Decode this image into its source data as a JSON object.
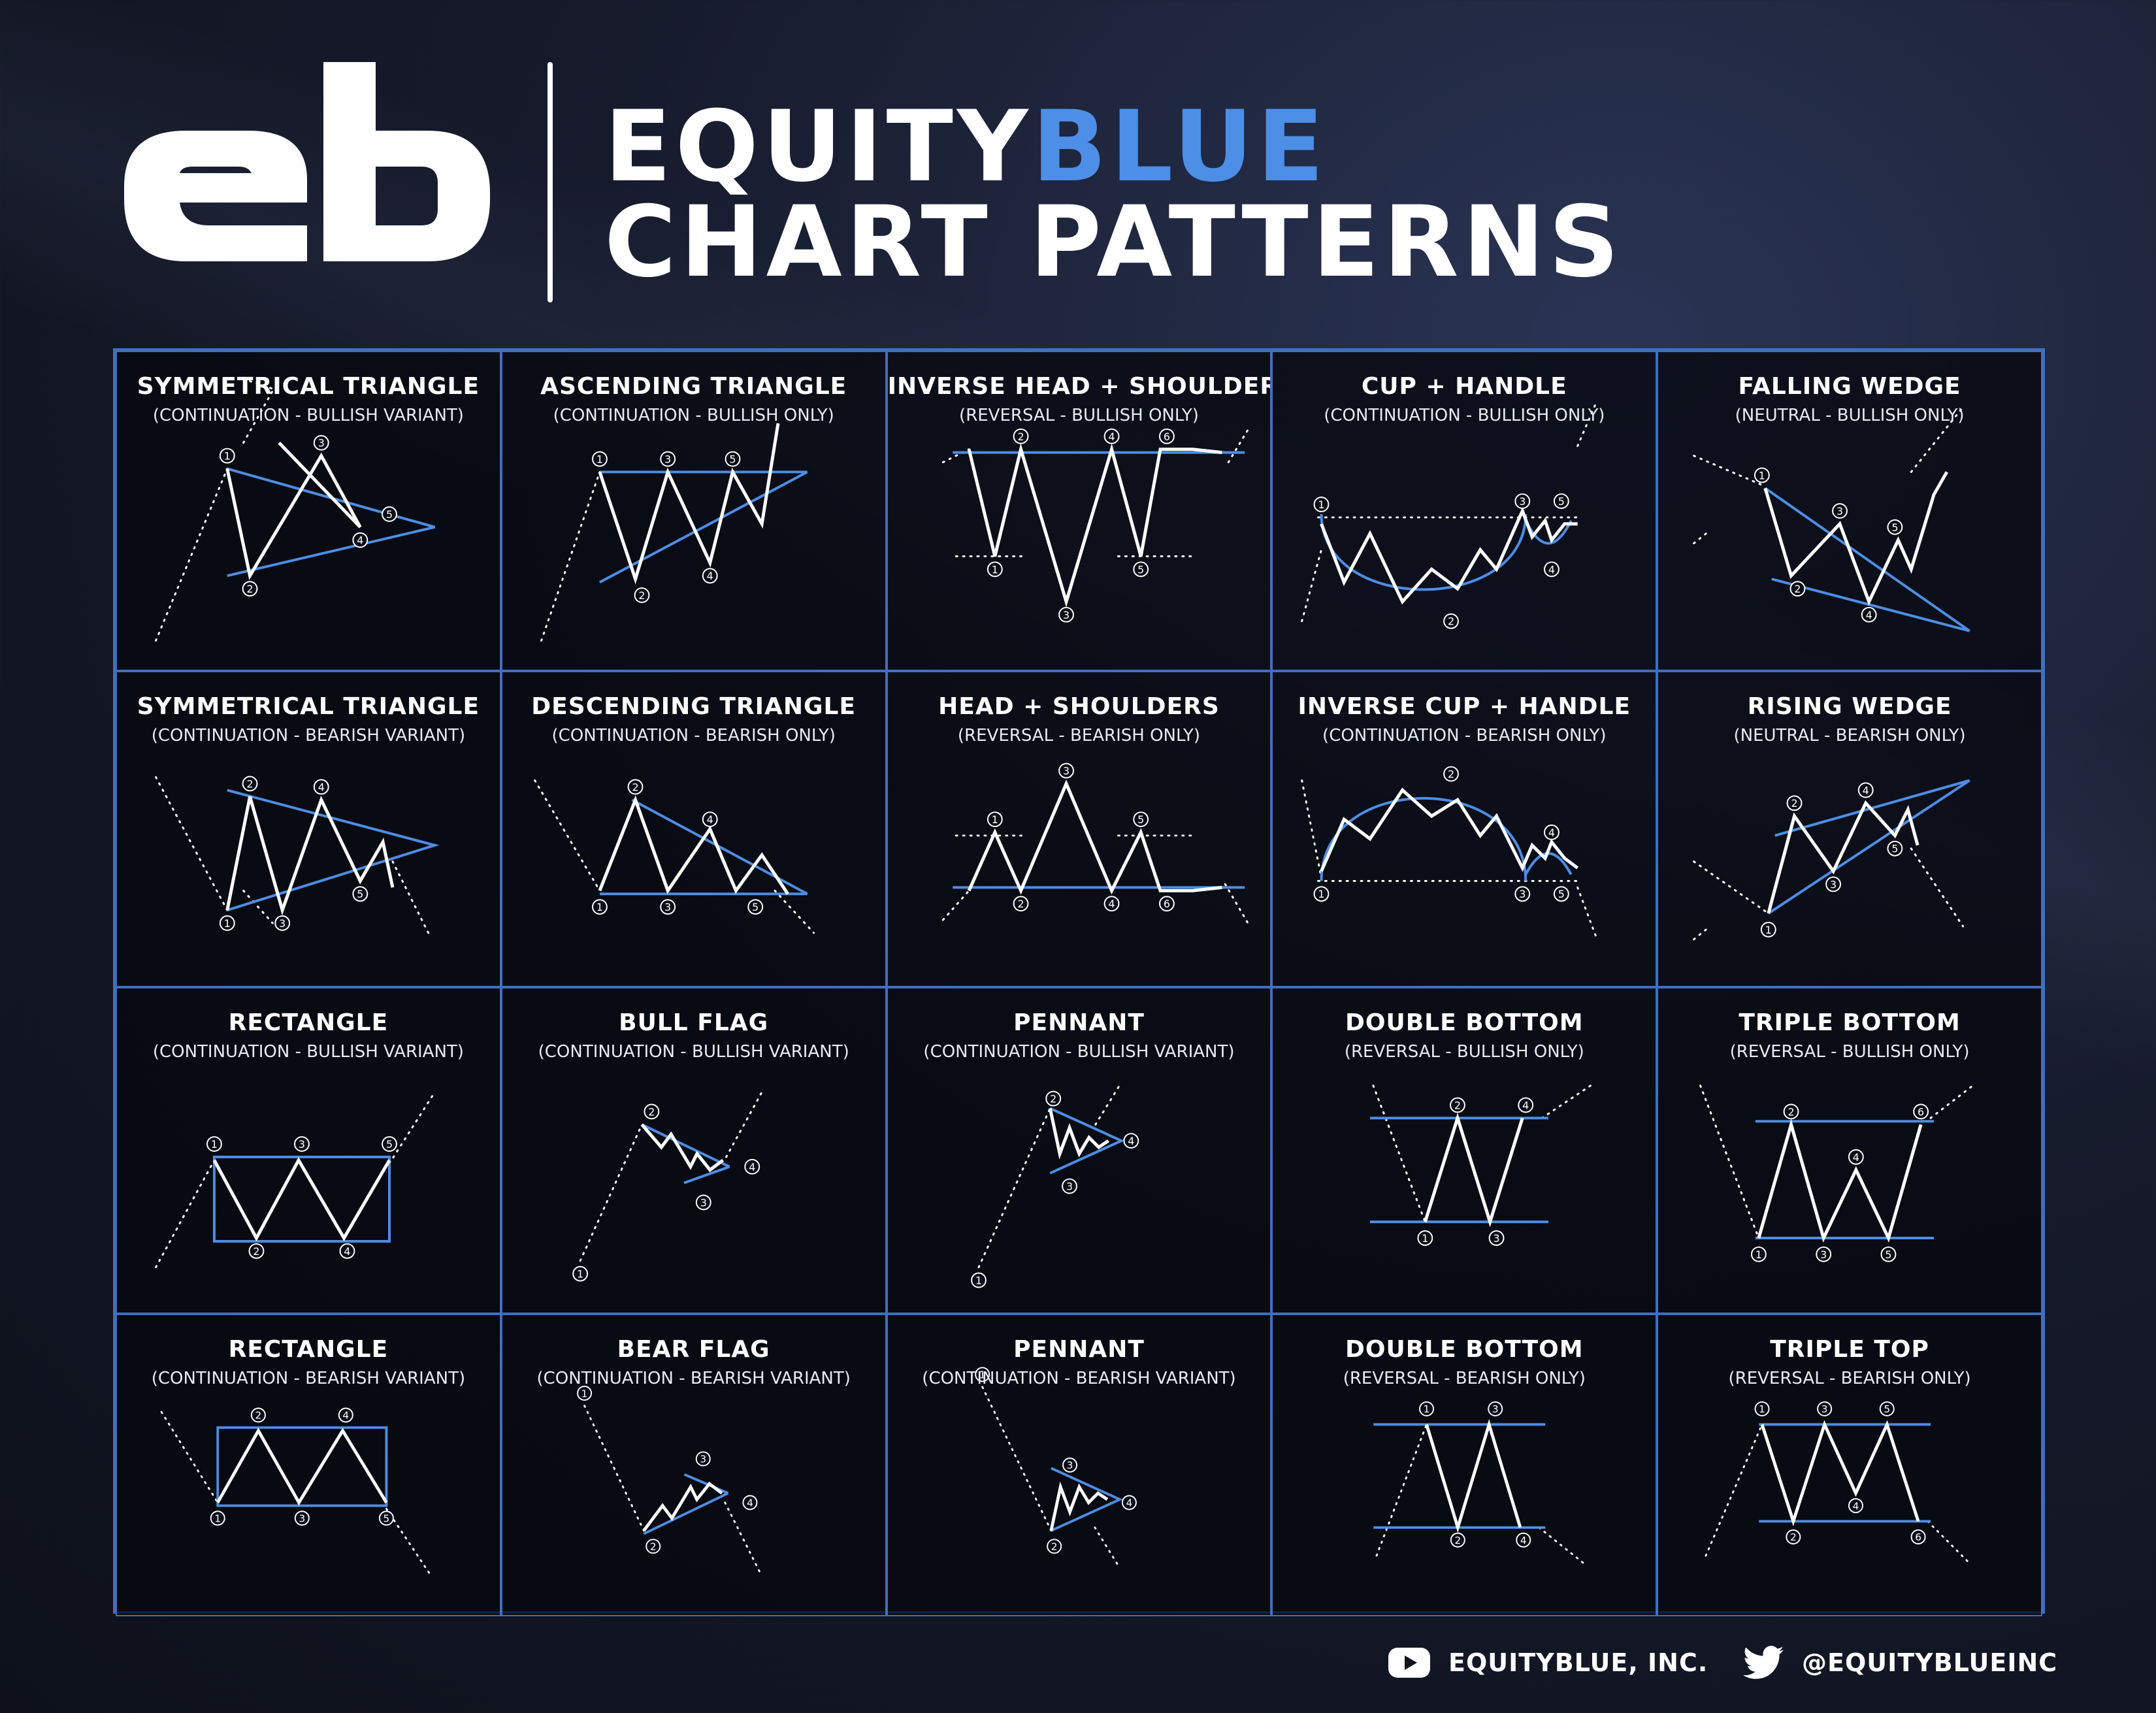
{
  "header": {
    "logo": "eb",
    "brand_white": "EQUITY",
    "brand_blue": "BLUE",
    "subtitle": "CHART PATTERNS"
  },
  "colors": {
    "accent_blue": "#4d8ee6",
    "grid_border": "#3f6fc2",
    "background": "#10131e"
  },
  "patterns": [
    {
      "id": "sym-bull",
      "title": "SYMMETRICAL TRIANGLE",
      "subtitle": "(CONTINUATION - BULLISH VARIANT)"
    },
    {
      "id": "asc",
      "title": "ASCENDING TRIANGLE",
      "subtitle": "(CONTINUATION - BULLISH ONLY)"
    },
    {
      "id": "ihs",
      "title": "INVERSE HEAD + SHOULDERS",
      "subtitle": "(REVERSAL - BULLISH ONLY)"
    },
    {
      "id": "cup",
      "title": "CUP + HANDLE",
      "subtitle": "(CONTINUATION - BULLISH ONLY)"
    },
    {
      "id": "fwedge",
      "title": "FALLING WEDGE",
      "subtitle": "(NEUTRAL - BULLISH ONLY)"
    },
    {
      "id": "sym-bear",
      "title": "SYMMETRICAL TRIANGLE",
      "subtitle": "(CONTINUATION - BEARISH VARIANT)"
    },
    {
      "id": "desc",
      "title": "DESCENDING TRIANGLE",
      "subtitle": "(CONTINUATION - BEARISH ONLY)"
    },
    {
      "id": "hs",
      "title": "HEAD + SHOULDERS",
      "subtitle": "(REVERSAL - BEARISH ONLY)"
    },
    {
      "id": "icup",
      "title": "INVERSE CUP + HANDLE",
      "subtitle": "(CONTINUATION - BEARISH ONLY)"
    },
    {
      "id": "rwedge",
      "title": "RISING WEDGE",
      "subtitle": "(NEUTRAL - BEARISH ONLY)"
    },
    {
      "id": "rect-bull",
      "title": "RECTANGLE",
      "subtitle": "(CONTINUATION - BULLISH VARIANT)"
    },
    {
      "id": "bullflag",
      "title": "BULL FLAG",
      "subtitle": "(CONTINUATION - BULLISH VARIANT)"
    },
    {
      "id": "pen-bull",
      "title": "PENNANT",
      "subtitle": "(CONTINUATION - BULLISH VARIANT)"
    },
    {
      "id": "dbot",
      "title": "DOUBLE BOTTOM",
      "subtitle": "(REVERSAL - BULLISH ONLY)"
    },
    {
      "id": "tbot",
      "title": "TRIPLE BOTTOM",
      "subtitle": "(REVERSAL - BULLISH ONLY)"
    },
    {
      "id": "rect-bear",
      "title": "RECTANGLE",
      "subtitle": "(CONTINUATION - BEARISH VARIANT)"
    },
    {
      "id": "bearflag",
      "title": "BEAR FLAG",
      "subtitle": "(CONTINUATION - BEARISH VARIANT)"
    },
    {
      "id": "pen-bear",
      "title": "PENNANT",
      "subtitle": "(CONTINUATION - BEARISH VARIANT)"
    },
    {
      "id": "dtop",
      "title": "DOUBLE BOTTOM",
      "subtitle": "(REVERSAL - BEARISH ONLY)"
    },
    {
      "id": "ttop",
      "title": "TRIPLE TOP",
      "subtitle": "(REVERSAL - BEARISH ONLY)"
    }
  ],
  "footer": {
    "youtube_icon": "youtube-icon",
    "youtube_label": "EQUITYBLUE, INC.",
    "twitter_icon": "twitter-icon",
    "twitter_label": "@EQUITYBLUEINC"
  }
}
